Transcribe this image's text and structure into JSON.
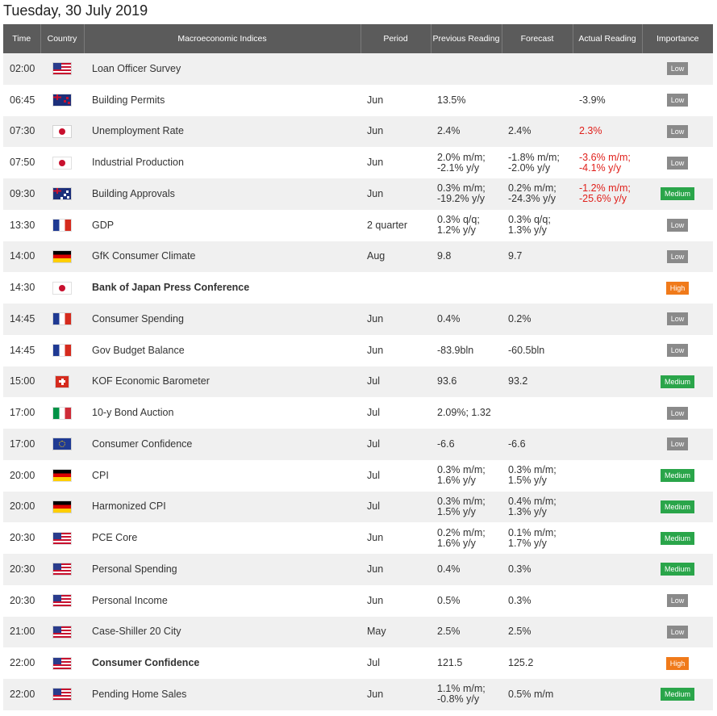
{
  "page_title": "Tuesday, 30 July 2019",
  "columns": {
    "time": "Time",
    "country": "Country",
    "index": "Macroeconomic Indices",
    "period": "Period",
    "previous": "Previous Reading",
    "forecast": "Forecast",
    "actual": "Actual Reading",
    "importance": "Importance"
  },
  "colors": {
    "header_bg": "#5b5b5b",
    "low": "#8a8a8a",
    "medium": "#2aa54a",
    "high": "#f07a1a",
    "negative_actual": "#e0201b"
  },
  "rows": [
    {
      "time": "02:00",
      "flag": "us",
      "index": "Loan Officer Survey",
      "period": "",
      "previous": "",
      "forecast": "",
      "actual": "",
      "actual_red": false,
      "importance": "Low",
      "bold": false
    },
    {
      "time": "06:45",
      "flag": "nz",
      "index": "Building Permits",
      "period": "Jun",
      "previous": "13.5%",
      "forecast": "",
      "actual": "-3.9%",
      "actual_red": false,
      "importance": "Low",
      "bold": false
    },
    {
      "time": "07:30",
      "flag": "jp",
      "index": "Unemployment Rate",
      "period": "Jun",
      "previous": "2.4%",
      "forecast": "2.4%",
      "actual": "2.3%",
      "actual_red": true,
      "importance": "Low",
      "bold": false
    },
    {
      "time": "07:50",
      "flag": "jp",
      "index": "Industrial Production",
      "period": "Jun",
      "previous": "2.0% m/m;\n-2.1% y/y",
      "forecast": "-1.8% m/m;\n-2.0% y/y",
      "actual": "-3.6% m/m;\n-4.1% y/y",
      "actual_red": true,
      "importance": "Low",
      "bold": false
    },
    {
      "time": "09:30",
      "flag": "au",
      "index": "Building Approvals",
      "period": "Jun",
      "previous": "0.3% m/m;\n-19.2% y/y",
      "forecast": "0.2% m/m;\n-24.3% y/y",
      "actual": "-1.2% m/m;\n-25.6% y/y",
      "actual_red": true,
      "importance": "Medium",
      "bold": false
    },
    {
      "time": "13:30",
      "flag": "fr",
      "index": "GDP",
      "period": "2 quarter",
      "previous": "0.3% q/q;\n1.2% y/y",
      "forecast": "0.3% q/q;\n1.3% y/y",
      "actual": "",
      "actual_red": false,
      "importance": "Low",
      "bold": false
    },
    {
      "time": "14:00",
      "flag": "de",
      "index": "GfK Consumer Climate",
      "period": "Aug",
      "previous": "9.8",
      "forecast": "9.7",
      "actual": "",
      "actual_red": false,
      "importance": "Low",
      "bold": false
    },
    {
      "time": "14:30",
      "flag": "jp",
      "index": "Bank of Japan Press Conference",
      "period": "",
      "previous": "",
      "forecast": "",
      "actual": "",
      "actual_red": false,
      "importance": "High",
      "bold": true
    },
    {
      "time": "14:45",
      "flag": "fr",
      "index": "Consumer Spending",
      "period": "Jun",
      "previous": "0.4%",
      "forecast": "0.2%",
      "actual": "",
      "actual_red": false,
      "importance": "Low",
      "bold": false
    },
    {
      "time": "14:45",
      "flag": "fr",
      "index": "Gov Budget Balance",
      "period": "Jun",
      "previous": "-83.9bln",
      "forecast": "-60.5bln",
      "actual": "",
      "actual_red": false,
      "importance": "Low",
      "bold": false
    },
    {
      "time": "15:00",
      "flag": "ch",
      "index": "KOF Economic Barometer",
      "period": "Jul",
      "previous": "93.6",
      "forecast": "93.2",
      "actual": "",
      "actual_red": false,
      "importance": "Medium",
      "bold": false
    },
    {
      "time": "17:00",
      "flag": "it",
      "index": "10-y Bond Auction",
      "period": "Jul",
      "previous": "2.09%; 1.32",
      "forecast": "",
      "actual": "",
      "actual_red": false,
      "importance": "Low",
      "bold": false
    },
    {
      "time": "17:00",
      "flag": "eu",
      "index": "Consumer Confidence",
      "period": "Jul",
      "previous": "-6.6",
      "forecast": "-6.6",
      "actual": "",
      "actual_red": false,
      "importance": "Low",
      "bold": false
    },
    {
      "time": "20:00",
      "flag": "de",
      "index": "CPI",
      "period": "Jul",
      "previous": "0.3% m/m;\n1.6% y/y",
      "forecast": "0.3% m/m;\n1.5% y/y",
      "actual": "",
      "actual_red": false,
      "importance": "Medium",
      "bold": false
    },
    {
      "time": "20:00",
      "flag": "de",
      "index": "Harmonized CPI",
      "period": "Jul",
      "previous": "0.3% m/m;\n1.5% y/y",
      "forecast": "0.4% m/m;\n1.3% y/y",
      "actual": "",
      "actual_red": false,
      "importance": "Medium",
      "bold": false
    },
    {
      "time": "20:30",
      "flag": "us",
      "index": "PCE Core",
      "period": "Jun",
      "previous": "0.2% m/m;\n1.6% y/y",
      "forecast": "0.1% m/m;\n1.7% y/y",
      "actual": "",
      "actual_red": false,
      "importance": "Medium",
      "bold": false
    },
    {
      "time": "20:30",
      "flag": "us",
      "index": "Personal Spending",
      "period": "Jun",
      "previous": "0.4%",
      "forecast": "0.3%",
      "actual": "",
      "actual_red": false,
      "importance": "Medium",
      "bold": false
    },
    {
      "time": "20:30",
      "flag": "us",
      "index": "Personal Income",
      "period": "Jun",
      "previous": "0.5%",
      "forecast": "0.3%",
      "actual": "",
      "actual_red": false,
      "importance": "Low",
      "bold": false
    },
    {
      "time": "21:00",
      "flag": "us",
      "index": "Case-Shiller 20 City",
      "period": "May",
      "previous": "2.5%",
      "forecast": "2.5%",
      "actual": "",
      "actual_red": false,
      "importance": "Low",
      "bold": false
    },
    {
      "time": "22:00",
      "flag": "us",
      "index": "Consumer Confidence",
      "period": "Jul",
      "previous": "121.5",
      "forecast": "125.2",
      "actual": "",
      "actual_red": false,
      "importance": "High",
      "bold": true
    },
    {
      "time": "22:00",
      "flag": "us",
      "index": "Pending Home Sales",
      "period": "Jun",
      "previous": "1.1% m/m;\n-0.8% y/y",
      "forecast": "0.5% m/m",
      "actual": "",
      "actual_red": false,
      "importance": "Medium",
      "bold": false
    }
  ]
}
